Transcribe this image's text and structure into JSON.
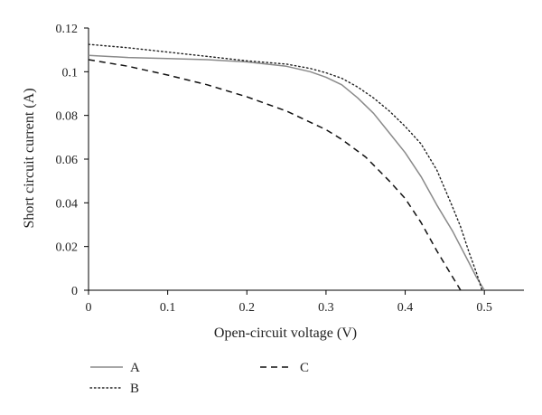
{
  "chart_data": {
    "type": "line",
    "title": "",
    "xlabel": "Open-circuit voltage (V)",
    "ylabel": "Short circuit current (A)",
    "xlim": [
      0,
      0.55
    ],
    "ylim": [
      0,
      0.12
    ],
    "x_ticks": [
      0,
      0.1,
      0.2,
      0.3,
      0.4,
      0.5
    ],
    "x_tick_labels": [
      "0",
      "0.1",
      "0.2",
      "0.3",
      "0.4",
      "0.5"
    ],
    "y_ticks": [
      0,
      0.02,
      0.04,
      0.06,
      0.08,
      0.1,
      0.12
    ],
    "y_tick_labels": [
      "0",
      "0.02",
      "0.04",
      "0.06",
      "0.08",
      "0.1",
      "0.12"
    ],
    "grid": false,
    "legend_placement": "bottom",
    "series": [
      {
        "name": "A",
        "style": "solid",
        "color": "#8a8a8a",
        "points": [
          [
            0,
            0.1075
          ],
          [
            0.05,
            0.1065
          ],
          [
            0.1,
            0.106
          ],
          [
            0.15,
            0.1055
          ],
          [
            0.2,
            0.1045
          ],
          [
            0.25,
            0.1025
          ],
          [
            0.28,
            0.1
          ],
          [
            0.3,
            0.0975
          ],
          [
            0.32,
            0.094
          ],
          [
            0.34,
            0.088
          ],
          [
            0.36,
            0.081
          ],
          [
            0.38,
            0.072
          ],
          [
            0.4,
            0.063
          ],
          [
            0.42,
            0.052
          ],
          [
            0.44,
            0.039
          ],
          [
            0.46,
            0.027
          ],
          [
            0.48,
            0.013
          ],
          [
            0.49,
            0.006
          ],
          [
            0.5,
            0.0
          ]
        ]
      },
      {
        "name": "B",
        "style": "dotted",
        "color": "#222222",
        "points": [
          [
            0,
            0.1125
          ],
          [
            0.05,
            0.111
          ],
          [
            0.1,
            0.109
          ],
          [
            0.15,
            0.107
          ],
          [
            0.2,
            0.105
          ],
          [
            0.25,
            0.1035
          ],
          [
            0.28,
            0.1015
          ],
          [
            0.3,
            0.0995
          ],
          [
            0.32,
            0.097
          ],
          [
            0.34,
            0.093
          ],
          [
            0.36,
            0.088
          ],
          [
            0.38,
            0.082
          ],
          [
            0.4,
            0.075
          ],
          [
            0.42,
            0.067
          ],
          [
            0.44,
            0.055
          ],
          [
            0.46,
            0.038
          ],
          [
            0.47,
            0.029
          ],
          [
            0.48,
            0.018
          ],
          [
            0.49,
            0.008
          ],
          [
            0.497,
            0.0
          ]
        ]
      },
      {
        "name": "C",
        "style": "dashed",
        "color": "#111111",
        "points": [
          [
            0,
            0.1055
          ],
          [
            0.05,
            0.1025
          ],
          [
            0.1,
            0.0985
          ],
          [
            0.15,
            0.094
          ],
          [
            0.2,
            0.0885
          ],
          [
            0.25,
            0.082
          ],
          [
            0.3,
            0.0735
          ],
          [
            0.32,
            0.069
          ],
          [
            0.35,
            0.061
          ],
          [
            0.38,
            0.05
          ],
          [
            0.4,
            0.042
          ],
          [
            0.42,
            0.031
          ],
          [
            0.44,
            0.018
          ],
          [
            0.46,
            0.006
          ],
          [
            0.47,
            0.0
          ]
        ]
      }
    ]
  }
}
